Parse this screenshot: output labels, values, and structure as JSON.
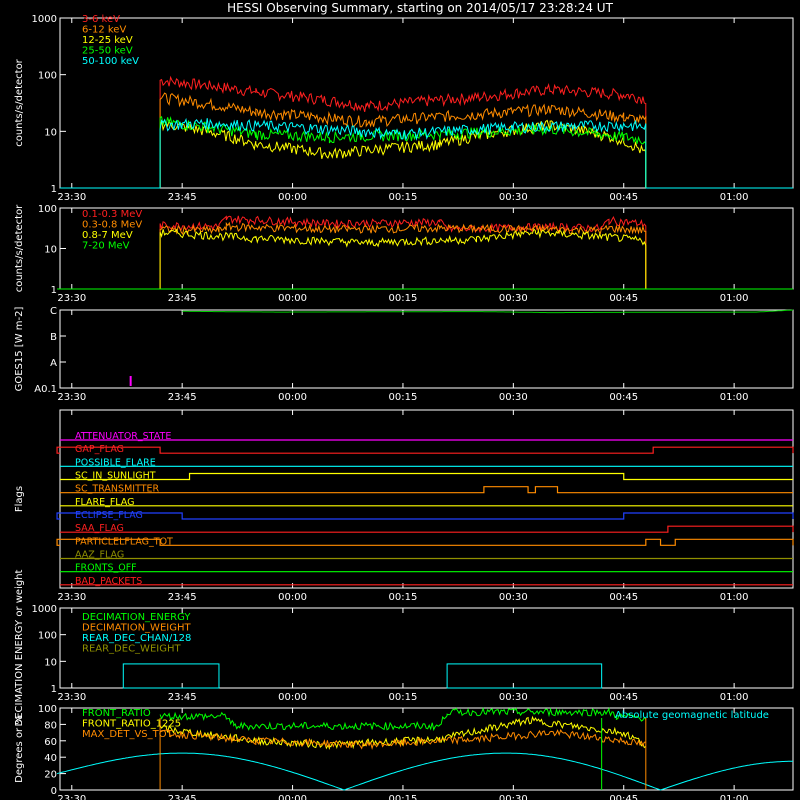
{
  "title": "HESSI Observing Summary, starting on 2014/05/17 23:28:24 UT",
  "time_ticks": [
    "23:30",
    "23:45",
    "00:00",
    "00:15",
    "00:30",
    "00:45",
    "01:00"
  ],
  "chart_data": [
    {
      "type": "line",
      "ylabel": "counts/s/detector",
      "yscale": "log",
      "ylim": [
        1,
        1000
      ],
      "yticks": [
        "1",
        "10",
        "100",
        "1000"
      ],
      "series": [
        {
          "name": "3-6 keV",
          "color": "#ff2020",
          "values": [
            {
              "t": "23:42",
              "y": 80
            },
            {
              "t": "23:55",
              "y": 50
            },
            {
              "t": "00:10",
              "y": 28
            },
            {
              "t": "00:25",
              "y": 40
            },
            {
              "t": "00:35",
              "y": 55
            },
            {
              "t": "00:45",
              "y": 45
            },
            {
              "t": "00:48",
              "y": 38
            }
          ]
        },
        {
          "name": "6-12 keV",
          "color": "#ff8c00",
          "values": [
            {
              "t": "23:42",
              "y": 40
            },
            {
              "t": "23:55",
              "y": 22
            },
            {
              "t": "00:10",
              "y": 15
            },
            {
              "t": "00:25",
              "y": 20
            },
            {
              "t": "00:35",
              "y": 25
            },
            {
              "t": "00:45",
              "y": 18
            },
            {
              "t": "00:48",
              "y": 15
            }
          ]
        },
        {
          "name": "12-25 keV",
          "color": "#ffff00",
          "values": [
            {
              "t": "23:42",
              "y": 14
            },
            {
              "t": "23:55",
              "y": 6
            },
            {
              "t": "00:05",
              "y": 4
            },
            {
              "t": "00:20",
              "y": 6
            },
            {
              "t": "00:35",
              "y": 13
            },
            {
              "t": "00:45",
              "y": 7
            },
            {
              "t": "00:48",
              "y": 4
            }
          ]
        },
        {
          "name": "25-50 keV",
          "color": "#00ff00",
          "values": [
            {
              "t": "23:42",
              "y": 15
            },
            {
              "t": "23:55",
              "y": 9
            },
            {
              "t": "00:05",
              "y": 8
            },
            {
              "t": "00:20",
              "y": 9
            },
            {
              "t": "00:35",
              "y": 11
            },
            {
              "t": "00:45",
              "y": 8
            },
            {
              "t": "00:48",
              "y": 7
            }
          ]
        },
        {
          "name": "50-100 keV",
          "color": "#00ffff",
          "values": [
            {
              "t": "23:42",
              "y": 13
            },
            {
              "t": "23:48",
              "y": 14
            },
            {
              "t": "24:00",
              "y": 12
            },
            {
              "t": "00:15",
              "y": 9
            },
            {
              "t": "00:30",
              "y": 12
            },
            {
              "t": "00:45",
              "y": 13
            },
            {
              "t": "00:48",
              "y": 12
            }
          ]
        }
      ]
    },
    {
      "type": "line",
      "ylabel": "counts/s/detector",
      "yscale": "log",
      "ylim": [
        1,
        100
      ],
      "yticks": [
        "1",
        "10",
        "100"
      ],
      "series": [
        {
          "name": "0.1-0.3 MeV",
          "color": "#ff2020",
          "values": [
            {
              "t": "23:42",
              "y": 38
            },
            {
              "t": "23:50",
              "y": 35
            },
            {
              "t": "23:51",
              "y": 55
            },
            {
              "t": "00:05",
              "y": 42
            },
            {
              "t": "00:20",
              "y": 45
            },
            {
              "t": "00:21",
              "y": 30
            },
            {
              "t": "00:35",
              "y": 35
            },
            {
              "t": "00:42",
              "y": 32
            },
            {
              "t": "00:43",
              "y": 50
            },
            {
              "t": "00:48",
              "y": 40
            }
          ]
        },
        {
          "name": "0.3-0.8 MeV",
          "color": "#ff8c00",
          "values": [
            {
              "t": "23:42",
              "y": 30
            },
            {
              "t": "23:50",
              "y": 28
            },
            {
              "t": "23:51",
              "y": 35
            },
            {
              "t": "00:05",
              "y": 30
            },
            {
              "t": "00:20",
              "y": 32
            },
            {
              "t": "00:35",
              "y": 30
            },
            {
              "t": "00:42",
              "y": 28
            },
            {
              "t": "00:43",
              "y": 32
            },
            {
              "t": "00:48",
              "y": 28
            }
          ]
        },
        {
          "name": "0.8-7 MeV",
          "color": "#ffff00",
          "values": [
            {
              "t": "23:42",
              "y": 25
            },
            {
              "t": "23:55",
              "y": 18
            },
            {
              "t": "00:10",
              "y": 14
            },
            {
              "t": "00:25",
              "y": 17
            },
            {
              "t": "00:33",
              "y": 25
            },
            {
              "t": "00:45",
              "y": 18
            },
            {
              "t": "00:48",
              "y": 15
            }
          ]
        },
        {
          "name": "7-20 MeV",
          "color": "#00ff00",
          "values": [
            {
              "t": "23:28",
              "y": 1
            },
            {
              "t": "01:08",
              "y": 1
            }
          ]
        }
      ]
    },
    {
      "type": "line",
      "ylabel": "GOES15 [W m-2]",
      "ylim": [
        0,
        3
      ],
      "yticks": [
        "A0.1",
        "A",
        "B",
        "C"
      ],
      "series": [
        {
          "name": "GOES",
          "color": "#00cc00",
          "values": [
            {
              "t": "23:45",
              "y": 2.95
            },
            {
              "t": "23:58",
              "y": 2.92
            },
            {
              "t": "00:25",
              "y": 2.94
            },
            {
              "t": "00:35",
              "y": 2.9
            },
            {
              "t": "00:45",
              "y": 2.91
            },
            {
              "t": "01:03",
              "y": 2.92
            },
            {
              "t": "01:08",
              "y": 3.0
            }
          ]
        }
      ],
      "annotations": [
        {
          "t": "23:38",
          "color": "#ff00ff"
        }
      ]
    },
    {
      "type": "table",
      "ylabel": "Flags",
      "flags": [
        {
          "name": "ATTENUATOR_STATE",
          "color": "#ff00ff",
          "on": []
        },
        {
          "name": "GAP_FLAG",
          "color": "#ff2020",
          "on": [
            [
              "23:28",
              "23:42"
            ],
            [
              "00:49",
              "01:08"
            ]
          ]
        },
        {
          "name": "POSSIBLE_FLARE",
          "color": "#00ffff",
          "on": []
        },
        {
          "name": "SC_IN_SUNLIGHT",
          "color": "#ffff00",
          "on": [
            [
              "23:46",
              "00:45"
            ]
          ]
        },
        {
          "name": "SC_TRANSMITTER",
          "color": "#ff8c00",
          "on": [
            [
              "00:26",
              "00:32"
            ],
            [
              "00:33",
              "00:36"
            ]
          ]
        },
        {
          "name": "FLARE_FLAG",
          "color": "#ffff00",
          "on": []
        },
        {
          "name": "ECLIPSE_FLAG",
          "color": "#2040ff",
          "on": [
            [
              "23:28",
              "23:45"
            ],
            [
              "00:45",
              "01:08"
            ]
          ]
        },
        {
          "name": "SAA_FLAG",
          "color": "#ff2020",
          "on": [
            [
              "00:51",
              "01:08"
            ]
          ]
        },
        {
          "name": "PARTICLELFLAG_TOT",
          "color": "#ff8c00",
          "on": [
            [
              "23:28",
              "23:42"
            ],
            [
              "00:48",
              "00:50"
            ],
            [
              "00:52",
              "01:08"
            ]
          ]
        },
        {
          "name": "AAZ_FLAG",
          "color": "#909000",
          "on": []
        },
        {
          "name": "FRONTS_OFF",
          "color": "#00ff00",
          "on": []
        },
        {
          "name": "BAD_PACKETS",
          "color": "#ff2020",
          "on": []
        }
      ]
    },
    {
      "type": "line",
      "ylabel": "DECIMATION ENERGY or weight",
      "yscale": "log",
      "ylim": [
        1,
        1000
      ],
      "yticks": [
        "1",
        "10",
        "100",
        "1000"
      ],
      "series": [
        {
          "name": "DECIMATION_ENERGY",
          "color": "#00ff00",
          "values": []
        },
        {
          "name": "DECIMATION_WEIGHT",
          "color": "#ff8c00",
          "values": []
        },
        {
          "name": "REAR_DEC_CHAN/128",
          "color": "#00ffff",
          "values": []
        },
        {
          "name": "REAR_DEC_WEIGHT",
          "color": "#909000",
          "values": []
        }
      ]
    },
    {
      "type": "line",
      "ylabel": "Degrees or %",
      "ylim": [
        0,
        100
      ],
      "yticks": [
        "0",
        "20",
        "40",
        "60",
        "80",
        "100"
      ],
      "series": [
        {
          "name": "FRONT_RATIO",
          "color": "#00ff00",
          "values": [
            {
              "t": "23:42",
              "y": 90
            },
            {
              "t": "23:51",
              "y": 90
            },
            {
              "t": "23:52",
              "y": 78
            },
            {
              "t": "00:20",
              "y": 78
            },
            {
              "t": "00:21",
              "y": 95
            },
            {
              "t": "00:43",
              "y": 95
            },
            {
              "t": "00:44",
              "y": 90
            },
            {
              "t": "00:48",
              "y": 88
            }
          ]
        },
        {
          "name": "FRONT_RATIO_1225",
          "color": "#ffff00",
          "values": [
            {
              "t": "23:42",
              "y": 75
            },
            {
              "t": "23:55",
              "y": 60
            },
            {
              "t": "00:05",
              "y": 55
            },
            {
              "t": "00:20",
              "y": 62
            },
            {
              "t": "00:32",
              "y": 85
            },
            {
              "t": "00:45",
              "y": 70
            },
            {
              "t": "00:48",
              "y": 55
            }
          ]
        },
        {
          "name": "MAX_DET_VS_TOT",
          "color": "#ff8c00",
          "values": [
            {
              "t": "23:42",
              "y": 70
            },
            {
              "t": "23:55",
              "y": 60
            },
            {
              "t": "00:10",
              "y": 55
            },
            {
              "t": "00:25",
              "y": 62
            },
            {
              "t": "00:35",
              "y": 70
            },
            {
              "t": "00:45",
              "y": 60
            },
            {
              "t": "00:48",
              "y": 55
            }
          ]
        },
        {
          "name": "Absolute geomagnetic latitude",
          "color": "#00ffff",
          "values": [
            {
              "t": "23:28",
              "y": 20
            },
            {
              "t": "23:45",
              "y": 45
            },
            {
              "t": "00:07",
              "y": 0
            },
            {
              "t": "00:29",
              "y": 45
            },
            {
              "t": "00:50",
              "y": 0
            },
            {
              "t": "01:08",
              "y": 35
            }
          ]
        }
      ]
    }
  ]
}
